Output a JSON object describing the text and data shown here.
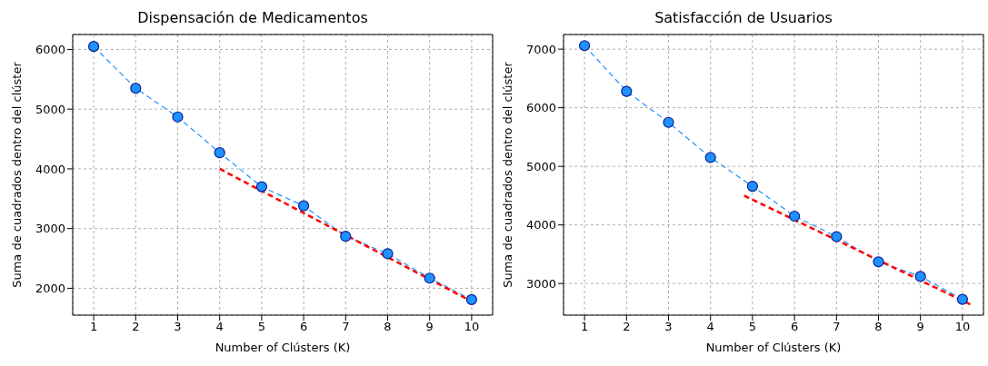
{
  "chart_data": [
    {
      "type": "line",
      "title": "Dispensación de Medicamentos",
      "xlabel": "Number of Clústers (K)",
      "ylabel": "Suma de cuadrados dentro del clúster",
      "x": [
        1,
        2,
        3,
        4,
        5,
        6,
        7,
        8,
        9,
        10
      ],
      "xlim": [
        0.5,
        10.5
      ],
      "xticks": [
        1,
        2,
        3,
        4,
        5,
        6,
        7,
        8,
        9,
        10
      ],
      "ylim": [
        1550,
        6250
      ],
      "yticks": [
        2000,
        3000,
        4000,
        5000,
        6000
      ],
      "grid": true,
      "marker": "circle",
      "line_style": "dashed",
      "series": [
        {
          "color": "#1e90ff",
          "values": [
            6050,
            5350,
            4870,
            4270,
            3700,
            3380,
            2870,
            2580,
            2170,
            1810
          ]
        },
        {
          "type": "line",
          "x": [
            4,
            10
          ],
          "color": "#ff0000",
          "marker": "none",
          "values": [
            4000,
            1780
          ]
        }
      ]
    },
    {
      "type": "line",
      "title": "Satisfacción de Usuarios",
      "xlabel": "Number of Clústers (K)",
      "ylabel": "Suma de cuadrados dentro del clúster",
      "x": [
        1,
        2,
        3,
        4,
        5,
        6,
        7,
        8,
        9,
        10
      ],
      "xlim": [
        0.5,
        10.5
      ],
      "xticks": [
        1,
        2,
        3,
        4,
        5,
        6,
        7,
        8,
        9,
        10
      ],
      "ylim": [
        2460,
        7250
      ],
      "yticks": [
        3000,
        4000,
        5000,
        6000,
        7000
      ],
      "grid": true,
      "marker": "circle",
      "line_style": "dashed",
      "series": [
        {
          "color": "#1e90ff",
          "values": [
            7060,
            6280,
            5750,
            5150,
            4660,
            4150,
            3800,
            3370,
            3120,
            2730
          ]
        },
        {
          "type": "line",
          "x": [
            4.8,
            10.2
          ],
          "color": "#ff0000",
          "marker": "none",
          "values": [
            4500,
            2640
          ]
        }
      ]
    }
  ]
}
